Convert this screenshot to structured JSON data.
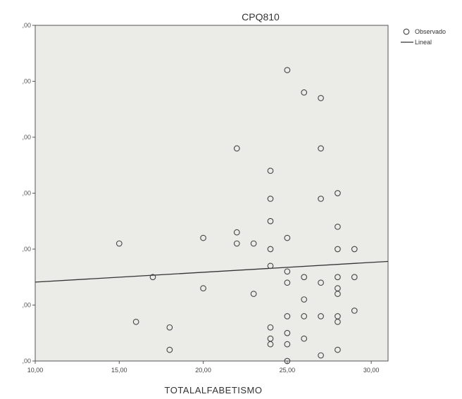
{
  "chart_data": {
    "type": "scatter",
    "title": "CPQ810",
    "xlabel": "TOTALALFABETISMO",
    "ylabel": "",
    "xlim": [
      10,
      31
    ],
    "ylim": [
      0,
      60
    ],
    "xticks": [
      10,
      15,
      20,
      25,
      30
    ],
    "xtick_labels": [
      "10,00",
      "15,00",
      "20,00",
      "25,00",
      "30,00"
    ],
    "yticks": [
      0,
      10,
      20,
      30,
      40,
      50,
      60
    ],
    "ytick_labels": [
      ",00",
      ",00",
      ",00",
      ",00",
      ",00",
      ",00",
      ",00"
    ],
    "grid": false,
    "legend_position": "top-right",
    "legend": [
      {
        "label": "Observado",
        "symbol": "circle"
      },
      {
        "label": "Lineal",
        "symbol": "line"
      }
    ],
    "plot_background": "#ebece8",
    "marker_color": "#444444",
    "line_color": "#333333",
    "series": [
      {
        "name": "Observado",
        "points": [
          [
            15,
            21
          ],
          [
            16,
            7
          ],
          [
            17,
            15
          ],
          [
            18,
            6
          ],
          [
            18,
            2
          ],
          [
            20,
            22
          ],
          [
            20,
            13
          ],
          [
            22,
            38
          ],
          [
            22,
            23
          ],
          [
            22,
            21
          ],
          [
            23,
            21
          ],
          [
            23,
            12
          ],
          [
            24,
            34
          ],
          [
            24,
            29
          ],
          [
            24,
            25
          ],
          [
            24,
            20
          ],
          [
            24,
            17
          ],
          [
            24,
            6
          ],
          [
            24,
            4
          ],
          [
            24,
            3
          ],
          [
            25,
            52
          ],
          [
            25,
            22
          ],
          [
            25,
            16
          ],
          [
            25,
            14
          ],
          [
            25,
            8
          ],
          [
            25,
            5
          ],
          [
            25,
            3
          ],
          [
            25,
            0
          ],
          [
            26,
            48
          ],
          [
            26,
            15
          ],
          [
            26,
            11
          ],
          [
            26,
            8
          ],
          [
            26,
            4
          ],
          [
            27,
            47
          ],
          [
            27,
            38
          ],
          [
            27,
            29
          ],
          [
            27,
            14
          ],
          [
            27,
            8
          ],
          [
            27,
            1
          ],
          [
            28,
            30
          ],
          [
            28,
            24
          ],
          [
            28,
            20
          ],
          [
            28,
            15
          ],
          [
            28,
            13
          ],
          [
            28,
            12
          ],
          [
            28,
            8
          ],
          [
            28,
            7
          ],
          [
            28,
            2
          ],
          [
            29,
            20
          ],
          [
            29,
            15
          ],
          [
            29,
            9
          ]
        ]
      },
      {
        "name": "Lineal",
        "line": [
          [
            10,
            14.1
          ],
          [
            31,
            17.8
          ]
        ]
      }
    ]
  }
}
